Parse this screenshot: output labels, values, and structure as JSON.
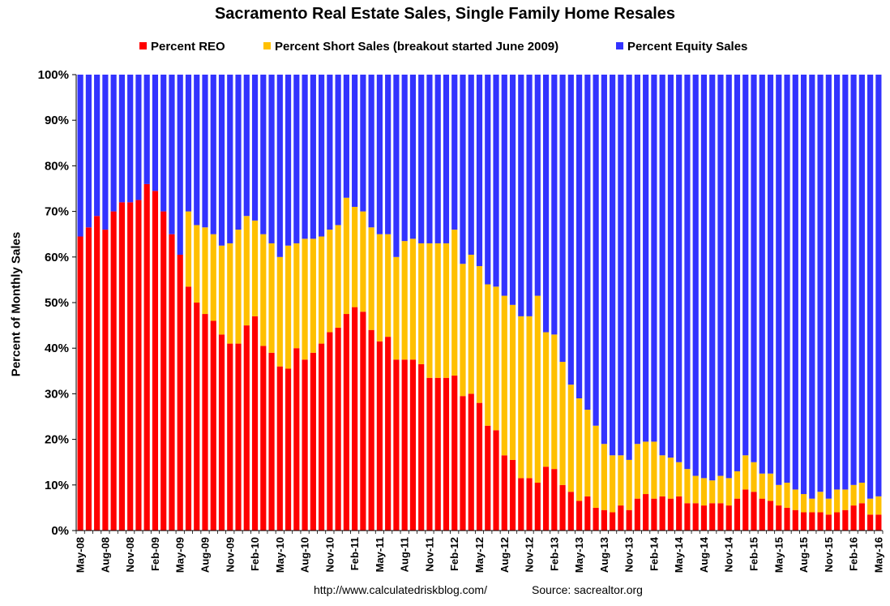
{
  "chart_data": {
    "type": "bar",
    "stacked": true,
    "title": "Sacramento Real Estate Sales, Single Family Home Resales",
    "ylabel": "Percent of Monthly Sales",
    "xlabel": "",
    "ylim": [
      0,
      100
    ],
    "yticks": [
      "0%",
      "10%",
      "20%",
      "30%",
      "40%",
      "50%",
      "60%",
      "70%",
      "80%",
      "90%",
      "100%"
    ],
    "tick_labels": [
      "May-08",
      "Aug-08",
      "Nov-08",
      "Feb-09",
      "May-09",
      "Aug-09",
      "Nov-09",
      "Feb-10",
      "May-10",
      "Aug-10",
      "Nov-10",
      "Feb-11",
      "May-11",
      "Aug-11",
      "Nov-11",
      "Feb-12",
      "May-12",
      "Aug-12",
      "Nov-12",
      "Feb-13",
      "May-13",
      "Aug-13",
      "Nov-13",
      "Feb-14",
      "May-14",
      "Aug-14",
      "Nov-14",
      "Feb-15",
      "May-15",
      "Aug-15",
      "Nov-15",
      "Feb-16",
      "May-16"
    ],
    "months": [
      "May-08",
      "Jun-08",
      "Jul-08",
      "Aug-08",
      "Sep-08",
      "Oct-08",
      "Nov-08",
      "Dec-08",
      "Jan-09",
      "Feb-09",
      "Mar-09",
      "Apr-09",
      "May-09",
      "Jun-09",
      "Jul-09",
      "Aug-09",
      "Sep-09",
      "Oct-09",
      "Nov-09",
      "Dec-09",
      "Jan-10",
      "Feb-10",
      "Mar-10",
      "Apr-10",
      "May-10",
      "Jun-10",
      "Jul-10",
      "Aug-10",
      "Sep-10",
      "Oct-10",
      "Nov-10",
      "Dec-10",
      "Jan-11",
      "Feb-11",
      "Mar-11",
      "Apr-11",
      "May-11",
      "Jun-11",
      "Jul-11",
      "Aug-11",
      "Sep-11",
      "Oct-11",
      "Nov-11",
      "Dec-11",
      "Jan-12",
      "Feb-12",
      "Mar-12",
      "Apr-12",
      "May-12",
      "Jun-12",
      "Jul-12",
      "Aug-12",
      "Sep-12",
      "Oct-12",
      "Nov-12",
      "Dec-12",
      "Jan-13",
      "Feb-13",
      "Mar-13",
      "Apr-13",
      "May-13",
      "Jun-13",
      "Jul-13",
      "Aug-13",
      "Sep-13",
      "Oct-13",
      "Nov-13",
      "Dec-13",
      "Jan-14",
      "Feb-14",
      "Mar-14",
      "Apr-14",
      "May-14",
      "Jun-14",
      "Jul-14",
      "Aug-14",
      "Sep-14",
      "Oct-14",
      "Nov-14",
      "Dec-14",
      "Jan-15",
      "Feb-15",
      "Mar-15",
      "Apr-15",
      "May-15",
      "Jun-15",
      "Jul-15",
      "Aug-15",
      "Sep-15",
      "Oct-15",
      "Nov-15",
      "Dec-15",
      "Jan-16",
      "Feb-16",
      "Mar-16",
      "Apr-16",
      "May-16"
    ],
    "series": [
      {
        "name": "Percent REO",
        "color": "#ff0000",
        "values": [
          64.5,
          66.5,
          69,
          66,
          70,
          72,
          72,
          72.5,
          76,
          74.5,
          70,
          65,
          60.5,
          53.5,
          50,
          47.5,
          46,
          43,
          41,
          41,
          45,
          47,
          40.5,
          39,
          36,
          35.5,
          40,
          37.5,
          39,
          41,
          43.5,
          44.5,
          47.5,
          49,
          48,
          44,
          41.5,
          42.5,
          37.5,
          37.5,
          37.5,
          36.5,
          33.5,
          33.5,
          33.5,
          34,
          29.5,
          30,
          28,
          23,
          22,
          16.5,
          15.5,
          11.5,
          11.5,
          10.5,
          14,
          13.5,
          10,
          8.5,
          6.5,
          7.5,
          5,
          4.5,
          4,
          5.5,
          4.5,
          7,
          8,
          7,
          7.5,
          7,
          7.5,
          6,
          6,
          5.5,
          6,
          6,
          5.5,
          7,
          9,
          8.5,
          7,
          6.5,
          5.5,
          5,
          4.5,
          4,
          4,
          4,
          3.5,
          4,
          4.5,
          5.5,
          6,
          3.5,
          3.5
        ]
      },
      {
        "name": "Percent Short Sales (breakout started June 2009)",
        "color": "#ffc000",
        "values": [
          0,
          0,
          0,
          0,
          0,
          0,
          0,
          0,
          0,
          0,
          0,
          0,
          0,
          16.5,
          17,
          19,
          19,
          19.5,
          22,
          25,
          24,
          21,
          24.5,
          24,
          24,
          27,
          23,
          26.5,
          25,
          23.5,
          22.5,
          22.5,
          25.5,
          22,
          22,
          22.5,
          23.5,
          22.5,
          22.5,
          26,
          26.5,
          26.5,
          29.5,
          29.5,
          29.5,
          32,
          29,
          30.5,
          30,
          31,
          31.5,
          35,
          34,
          35.5,
          35.5,
          41,
          29.5,
          29.5,
          27,
          23.5,
          22.5,
          19,
          18,
          14.5,
          12.5,
          11,
          11,
          12,
          11.5,
          12.5,
          9,
          9,
          7.5,
          7.5,
          6,
          6,
          5,
          6,
          6,
          6,
          7.5,
          6.5,
          5.5,
          6,
          4.5,
          5.5,
          4.5,
          4,
          3,
          4.5,
          3.5,
          5,
          4.5,
          4.5,
          4.5,
          3.5,
          4
        ]
      },
      {
        "name": "Percent Equity Sales",
        "color": "#3333ff",
        "values": [
          35.5,
          33.5,
          31,
          34,
          30,
          28,
          28,
          27.5,
          24,
          25.5,
          30,
          35,
          39.5,
          30,
          33,
          33.5,
          35,
          37.5,
          37,
          34,
          31,
          32,
          35,
          37,
          40,
          37.5,
          37,
          36,
          36,
          35.5,
          34,
          33,
          27,
          29,
          30,
          33.5,
          35,
          35,
          40,
          36.5,
          36,
          37,
          37,
          37,
          37,
          34,
          41.5,
          39.5,
          42,
          46,
          46.5,
          48.5,
          50.5,
          53,
          53,
          48.5,
          56.5,
          57,
          63,
          68,
          71,
          73.5,
          77,
          81,
          83.5,
          83.5,
          84.5,
          81,
          80.5,
          80.5,
          83.5,
          84,
          85,
          86.5,
          88,
          88.5,
          89,
          88,
          88.5,
          87,
          83.5,
          85,
          87.5,
          87.5,
          90,
          89.5,
          91,
          92,
          93,
          91.5,
          93,
          91,
          91,
          90,
          89.5,
          93,
          92.5
        ]
      }
    ],
    "legend_position": "top"
  },
  "footer": {
    "url": "http://www.calculatedriskblog.com/",
    "source": "Source: sacrealtor.org"
  }
}
